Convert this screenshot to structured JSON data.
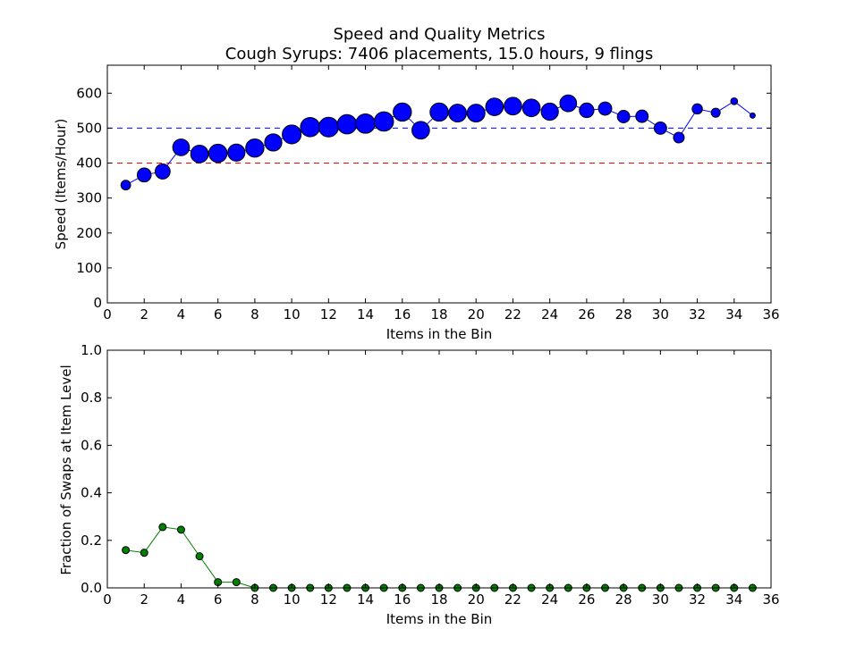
{
  "chart_data": [
    {
      "type": "scatter",
      "title": "Speed and Quality Metrics",
      "subtitle": "Cough Syrups: 7406 placements, 15.0 hours, 9 flings",
      "xlabel": "Items in the Bin",
      "ylabel": "Speed (Items/Hour)",
      "xlim": [
        0,
        36
      ],
      "ylim": [
        0,
        680
      ],
      "xticks": [
        "0",
        "2",
        "4",
        "6",
        "8",
        "10",
        "12",
        "14",
        "16",
        "18",
        "20",
        "22",
        "24",
        "26",
        "28",
        "30",
        "32",
        "34",
        "36"
      ],
      "yticks": [
        "0",
        "100",
        "200",
        "300",
        "400",
        "500",
        "600"
      ],
      "reference_lines": [
        {
          "y": 500,
          "color": "#0000ff",
          "style": "dashed"
        },
        {
          "y": 400,
          "color": "#ff0000",
          "style": "dashed"
        }
      ],
      "series": [
        {
          "color": "#0000ff",
          "x": [
            1,
            2,
            3,
            4,
            5,
            6,
            7,
            8,
            9,
            10,
            11,
            12,
            13,
            14,
            15,
            16,
            17,
            18,
            19,
            20,
            21,
            22,
            23,
            24,
            25,
            26,
            27,
            28,
            29,
            30,
            31,
            32,
            33,
            34,
            35
          ],
          "y": [
            337,
            366,
            376,
            445,
            426,
            428,
            430,
            443,
            459,
            482,
            503,
            503,
            511,
            513,
            519,
            546,
            494,
            546,
            543,
            543,
            561,
            563,
            558,
            547,
            571,
            551,
            556,
            533,
            534,
            500,
            473,
            555,
            544,
            577,
            536
          ],
          "marker_size_relative": [
            0.45,
            0.65,
            0.7,
            0.78,
            0.82,
            0.85,
            0.8,
            0.85,
            0.8,
            0.88,
            0.9,
            0.92,
            0.9,
            0.9,
            0.9,
            0.85,
            0.82,
            0.85,
            0.83,
            0.83,
            0.82,
            0.82,
            0.82,
            0.8,
            0.78,
            0.68,
            0.62,
            0.58,
            0.58,
            0.58,
            0.5,
            0.48,
            0.42,
            0.32,
            0.22
          ]
        }
      ]
    },
    {
      "type": "line",
      "xlabel": "Items in the Bin",
      "ylabel": "Fraction of Swaps at Item Level",
      "xlim": [
        0,
        36
      ],
      "ylim": [
        0,
        1.0
      ],
      "xticks": [
        "0",
        "2",
        "4",
        "6",
        "8",
        "10",
        "12",
        "14",
        "16",
        "18",
        "20",
        "22",
        "24",
        "26",
        "28",
        "30",
        "32",
        "34",
        "36"
      ],
      "yticks": [
        "0.0",
        "0.2",
        "0.4",
        "0.6",
        "0.8",
        "1.0"
      ],
      "series": [
        {
          "color": "#008000",
          "x": [
            1,
            2,
            3,
            4,
            5,
            6,
            7,
            8,
            9,
            10,
            11,
            12,
            13,
            14,
            15,
            16,
            17,
            18,
            19,
            20,
            21,
            22,
            23,
            24,
            25,
            26,
            27,
            28,
            29,
            30,
            31,
            32,
            33,
            34,
            35
          ],
          "y": [
            0.159,
            0.148,
            0.256,
            0.245,
            0.133,
            0.024,
            0.024,
            0,
            0,
            0,
            0,
            0,
            0,
            0,
            0,
            0,
            0,
            0,
            0,
            0,
            0,
            0,
            0,
            0,
            0,
            0,
            0,
            0,
            0,
            0,
            0,
            0,
            0,
            0,
            0
          ]
        }
      ]
    }
  ]
}
